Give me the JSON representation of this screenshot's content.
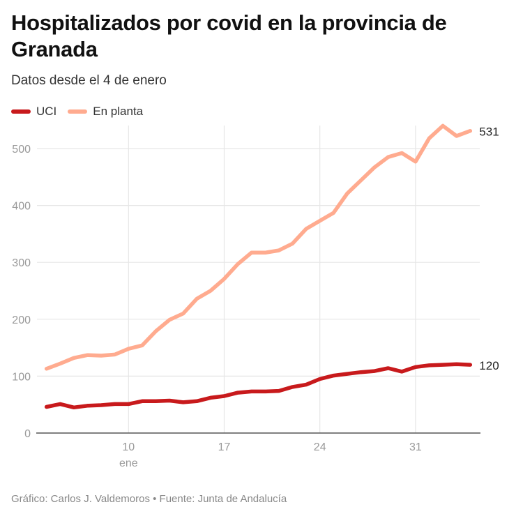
{
  "title": "Hospitalizados por covid en la provincia de Granada",
  "subtitle": "Datos desde el 4 de enero",
  "footer": "Gráfico: Carlos J. Valdemoros • Fuente: Junta de Andalucía",
  "chart_data": {
    "type": "line",
    "title": "Hospitalizados por covid en la provincia de Granada",
    "subtitle": "Datos desde el 4 de enero",
    "x": [
      "2021-01-04",
      "2021-01-05",
      "2021-01-06",
      "2021-01-07",
      "2021-01-08",
      "2021-01-09",
      "2021-01-10",
      "2021-01-11",
      "2021-01-12",
      "2021-01-13",
      "2021-01-14",
      "2021-01-15",
      "2021-01-16",
      "2021-01-17",
      "2021-01-18",
      "2021-01-19",
      "2021-01-20",
      "2021-01-21",
      "2021-01-22",
      "2021-01-23",
      "2021-01-24",
      "2021-01-25",
      "2021-01-26",
      "2021-01-27",
      "2021-01-28",
      "2021-01-29",
      "2021-01-30",
      "2021-01-31",
      "2021-02-01",
      "2021-02-02",
      "2021-02-03",
      "2021-02-04"
    ],
    "x_ticks": [
      {
        "date": "2021-01-10",
        "label": "10",
        "sublabel": "ene"
      },
      {
        "date": "2021-01-17",
        "label": "17"
      },
      {
        "date": "2021-01-24",
        "label": "24"
      },
      {
        "date": "2021-01-31",
        "label": "31"
      }
    ],
    "y_ticks": [
      0,
      100,
      200,
      300,
      400,
      500
    ],
    "ylim": [
      0,
      545
    ],
    "grid": true,
    "legend_position": "top-left",
    "series": [
      {
        "name": "UCI",
        "color": "#c81a1c",
        "end_label": "120",
        "values": [
          46,
          51,
          45,
          48,
          49,
          51,
          51,
          56,
          56,
          57,
          54,
          56,
          62,
          65,
          71,
          73,
          73,
          74,
          81,
          85,
          95,
          101,
          104,
          107,
          109,
          114,
          108,
          116,
          119,
          120,
          121,
          120
        ]
      },
      {
        "name": "En planta",
        "color": "#ffab8f",
        "end_label": "531",
        "values": [
          113,
          122,
          132,
          137,
          136,
          138,
          148,
          154,
          179,
          199,
          210,
          236,
          250,
          271,
          297,
          317,
          317,
          321,
          333,
          359,
          373,
          387,
          421,
          444,
          467,
          485,
          492,
          477,
          518,
          540,
          522,
          531
        ]
      }
    ]
  }
}
